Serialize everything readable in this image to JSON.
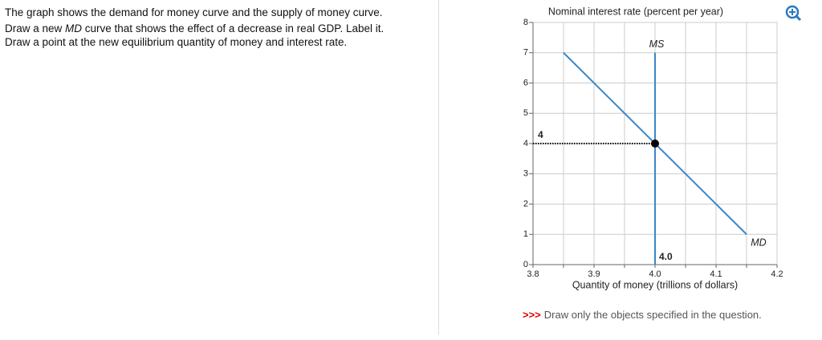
{
  "question": {
    "line1": "The graph shows the demand for money curve and the supply of money curve.",
    "line2_start": "Draw a new ",
    "line2_italic": "MD",
    "line2_end": " curve that shows the effect of a decrease in real GDP. Label it.",
    "line3": "Draw a point at the new equilibrium quantity of money and interest rate."
  },
  "footer": {
    "marker": ">>>",
    "text": "Draw only the objects specified in the question."
  },
  "chart_data": {
    "type": "line",
    "y_label": "Nominal interest rate (percent per year)",
    "x_label": "Quantity of money (trillions of dollars)",
    "xlim": [
      3.8,
      4.2
    ],
    "ylim": [
      0,
      8
    ],
    "xticks": [
      3.8,
      3.9,
      {
        "value": 4,
        "label": "4.0"
      },
      4.1,
      4.2
    ],
    "x_minor_ticks": [
      3.85,
      3.95,
      4.05,
      4.15
    ],
    "yticks": [
      0,
      1,
      2,
      3,
      4,
      5,
      6,
      7,
      8
    ],
    "grid": true,
    "series": [
      {
        "name": "MD",
        "color": "#3a87c8",
        "x": [
          3.85,
          4.15
        ],
        "values": [
          7,
          1
        ]
      },
      {
        "name": "MS",
        "color": "#3a87c8",
        "x": [
          4,
          4
        ],
        "values": [
          0,
          7
        ]
      }
    ],
    "equilibrium": {
      "x": 4,
      "y": 4,
      "x_label": "4.0",
      "y_label": "4",
      "color": "#000000"
    }
  }
}
